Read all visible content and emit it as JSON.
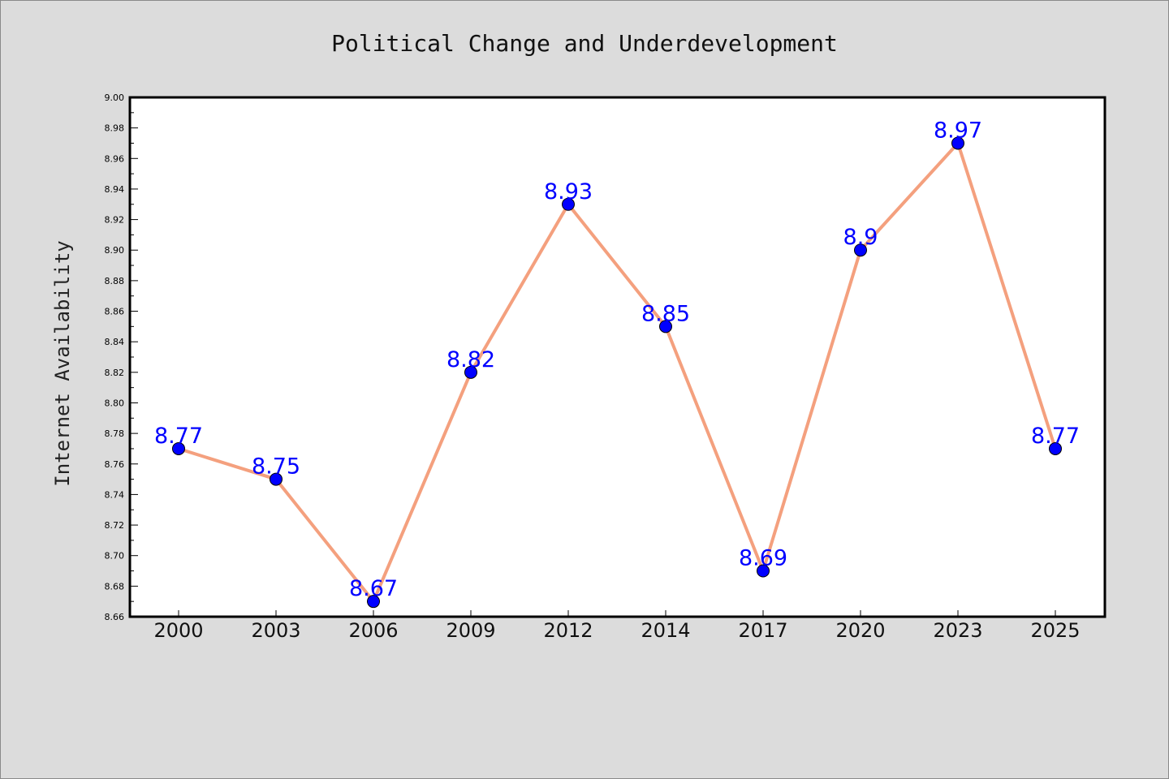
{
  "chart_data": {
    "type": "line",
    "title": "Political Change and Underdevelopment",
    "xlabel": "",
    "ylabel": "Internet Availability",
    "categories": [
      "2000",
      "2003",
      "2006",
      "2009",
      "2012",
      "2014",
      "2017",
      "2020",
      "2023",
      "2025"
    ],
    "series": [
      {
        "values": [
          8.77,
          8.75,
          8.67,
          8.82,
          8.93,
          8.85,
          8.69,
          8.9,
          8.97,
          8.77
        ],
        "data_labels": [
          "8.77",
          "8.75",
          "8.67",
          "8.82",
          "8.93",
          "8.85",
          "8.69",
          "8.9",
          "8.97",
          "8.77"
        ],
        "line_color": "#f4a07e",
        "marker_color": "#0000ff",
        "label_color": "#0000ff"
      }
    ],
    "ylim": [
      8.66,
      9.0
    ],
    "yticks": [
      "8.66",
      "8.68",
      "8.70",
      "8.72",
      "8.74",
      "8.76",
      "8.78",
      "8.80",
      "8.82",
      "8.84",
      "8.86",
      "8.88",
      "8.90",
      "8.92",
      "8.94",
      "8.96",
      "8.98",
      "9.00"
    ],
    "grid": false,
    "legend": "none",
    "colors": {
      "figure_background": "#dcdcdc",
      "plot_background": "#ffffff",
      "axes": "#000000"
    }
  }
}
